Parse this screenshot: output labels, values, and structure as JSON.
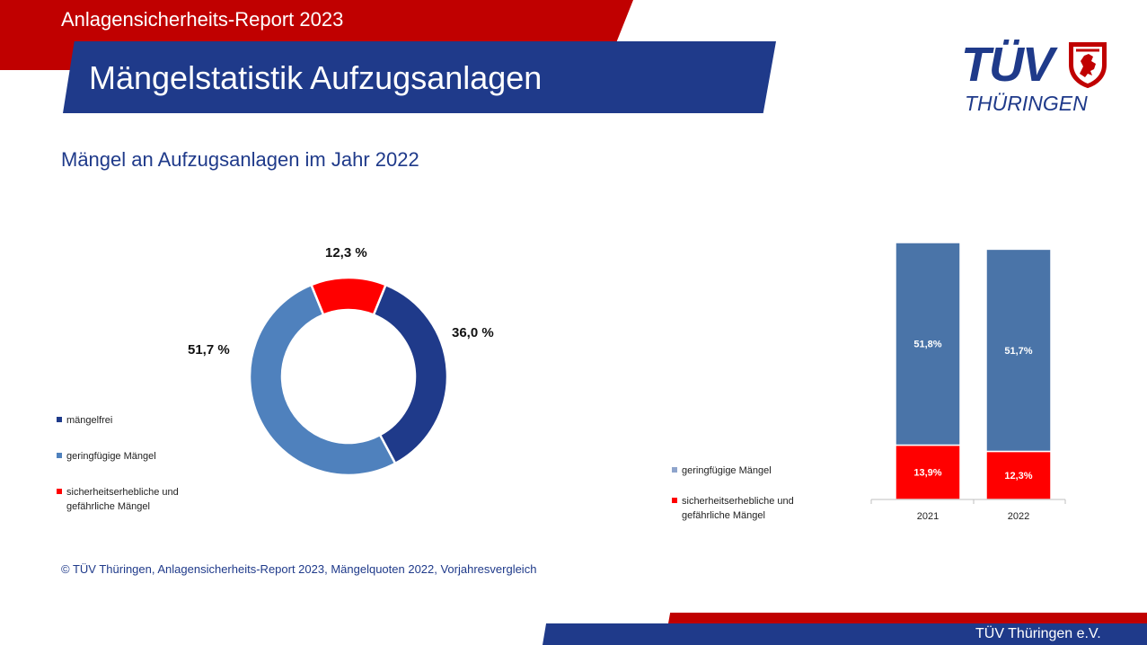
{
  "header": {
    "report_label": "Anlagensicherheits-Report 2023",
    "title": "Mängelstatistik Aufzugsanlagen",
    "subtitle": "Mängel an Aufzugsanlagen im Jahr 2022"
  },
  "logo": {
    "main": "TÜV",
    "sub": "THÜRINGEN"
  },
  "colors": {
    "brand_blue": "#1f3a8a",
    "brand_red": "#c00000",
    "slice_blue_dark": "#1f3a8a",
    "slice_blue_light": "#4f81bd",
    "bar_blue": "#4a74a8",
    "red": "#ff0000"
  },
  "chart_data": [
    {
      "type": "pie",
      "variant": "donut",
      "labels": [
        "mängelfrei",
        "geringfügige Mängel",
        "sicherheitserhebliche und gefährliche Mängel"
      ],
      "values": [
        36.0,
        51.7,
        12.3
      ],
      "display_values": [
        "36,0 %",
        "51,7 %",
        "12,3 %"
      ],
      "colors": [
        "#1f3a8a",
        "#4f81bd",
        "#ff0000"
      ],
      "legend": {
        "placement": "left",
        "items": [
          "mängelfrei",
          "geringfügige Mängel",
          "sicherheitserhebliche und gefährliche Mängel"
        ],
        "lines": [
          [
            "mängelfrei"
          ],
          [
            "geringfügige Mängel"
          ],
          [
            "sicherheitserhebliche und",
            "gefährliche Mängel"
          ]
        ]
      }
    },
    {
      "type": "bar",
      "variant": "stacked",
      "categories": [
        "2021",
        "2022"
      ],
      "series": [
        {
          "name": "sicherheitserhebliche und gefährliche Mängel",
          "values": [
            13.9,
            12.3
          ],
          "display_values": [
            "13,9%",
            "12,3%"
          ],
          "color": "#ff0000"
        },
        {
          "name": "geringfügige Mängel",
          "values": [
            51.8,
            51.7
          ],
          "display_values": [
            "51,8%",
            "51,7%"
          ],
          "color": "#4a74a8"
        }
      ],
      "ylim": [
        0,
        65.7
      ],
      "legend": {
        "placement": "left",
        "items": [
          "geringfügige Mängel",
          "sicherheitserhebliche und gefährliche Mängel"
        ],
        "lines": [
          [
            "geringfügige Mängel"
          ],
          [
            "sicherheitserhebliche und",
            "gefährliche Mängel"
          ]
        ]
      }
    }
  ],
  "source": "© TÜV Thüringen, Anlagensicherheits-Report 2023, Mängelquoten 2022, Vorjahresvergleich",
  "footer": {
    "org": "TÜV Thüringen e.V."
  }
}
